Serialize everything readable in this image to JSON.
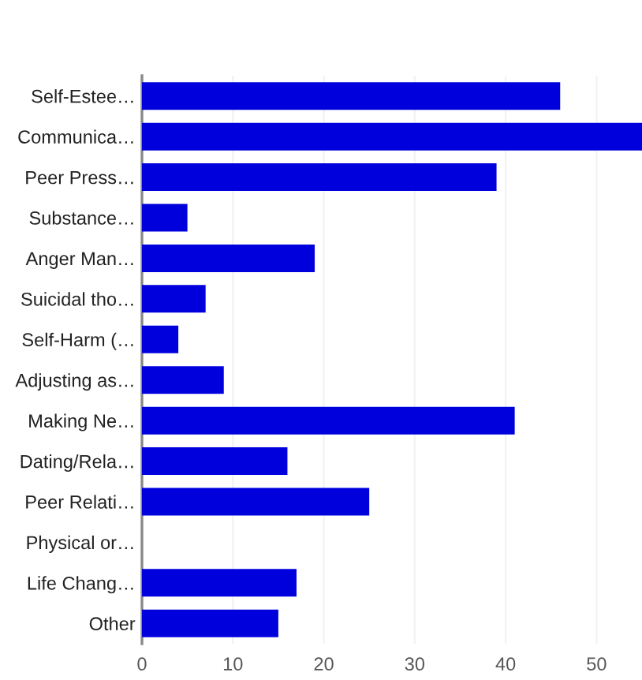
{
  "chart_data": {
    "type": "bar",
    "orientation": "horizontal",
    "categories": [
      "Self-Estee…",
      "Communica…",
      "Peer Press…",
      "Substance…",
      "Anger Man…",
      "Suicidal tho…",
      "Self-Harm (…",
      "Adjusting as…",
      "Making Ne…",
      "Dating/Rela…",
      "Peer Relati…",
      "Physical or…",
      "Life Chang…",
      "Other"
    ],
    "values": [
      46,
      55,
      39,
      5,
      19,
      7,
      4,
      9,
      41,
      16,
      25,
      0,
      17,
      15
    ],
    "color": "#0000dd",
    "xlim": [
      0,
      55
    ],
    "xticks": [
      0,
      10,
      20,
      30,
      40,
      50
    ],
    "grid": "x"
  }
}
